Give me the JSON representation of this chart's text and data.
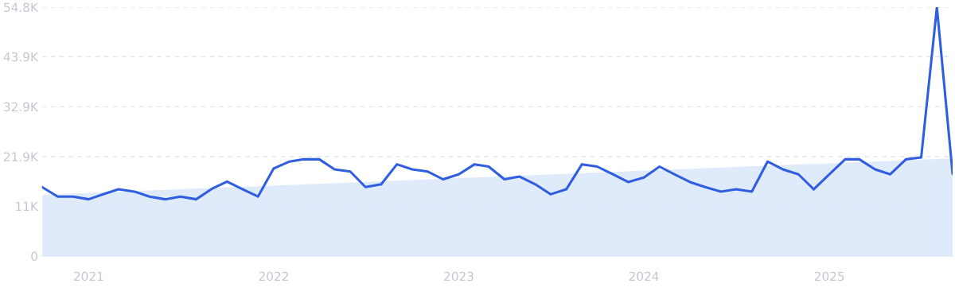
{
  "chart_data": {
    "type": "line",
    "x": [
      "2020-10",
      "2020-11",
      "2020-12",
      "2021-01",
      "2021-02",
      "2021-03",
      "2021-04",
      "2021-05",
      "2021-06",
      "2021-07",
      "2021-08",
      "2021-09",
      "2021-10",
      "2021-11",
      "2021-12",
      "2022-01",
      "2022-02",
      "2022-03",
      "2022-04",
      "2022-05",
      "2022-06",
      "2022-07",
      "2022-08",
      "2022-09",
      "2022-10",
      "2022-11",
      "2022-12",
      "2023-01",
      "2023-02",
      "2023-03",
      "2023-04",
      "2023-05",
      "2023-06",
      "2023-07",
      "2023-08",
      "2023-09",
      "2023-10",
      "2023-11",
      "2023-12",
      "2024-01",
      "2024-02",
      "2024-03",
      "2024-04",
      "2024-05",
      "2024-06",
      "2024-07",
      "2024-08",
      "2024-09",
      "2024-10",
      "2024-11",
      "2024-12",
      "2025-01",
      "2025-02",
      "2025-03",
      "2025-04",
      "2025-05",
      "2025-06",
      "2025-07",
      "2025-08",
      "2025-09"
    ],
    "series": [
      {
        "type": "area",
        "color": "#dce9fb",
        "x": [
          "2020-10",
          "2025-09"
        ],
        "values": [
          13500,
          21500
        ]
      },
      {
        "color": "#2f5fe0",
        "values": [
          15200,
          13100,
          13100,
          12500,
          13700,
          14700,
          14200,
          13100,
          12500,
          13100,
          12500,
          14800,
          16400,
          14700,
          13100,
          19300,
          20800,
          21300,
          21300,
          19100,
          18600,
          15200,
          15800,
          20200,
          19100,
          18600,
          16900,
          18000,
          20200,
          19700,
          16900,
          17500,
          15800,
          13600,
          14700,
          20200,
          19700,
          18000,
          16300,
          17300,
          19700,
          18000,
          16300,
          15200,
          14200,
          14700,
          14200,
          20800,
          19100,
          18000,
          14700,
          18000,
          21300,
          21300,
          19100,
          18000,
          21300,
          21700,
          54800,
          18100
        ]
      }
    ],
    "ylim": [
      0,
      54800
    ],
    "yticks": [
      0,
      {
        "value": 11000,
        "label": "11K"
      },
      {
        "value": 21900,
        "label": "21.9K"
      },
      {
        "value": 32900,
        "label": "32.9K"
      },
      {
        "value": 43900,
        "label": "43.9K"
      },
      {
        "value": 54800,
        "label": "54.8K"
      }
    ],
    "xlim": [
      "2020-10",
      "2025-09"
    ],
    "xticks": [
      {
        "value": "2021-01",
        "label": "2021"
      },
      {
        "value": "2022-01",
        "label": "2022"
      },
      {
        "value": "2023-01",
        "label": "2023"
      },
      {
        "value": "2024-01",
        "label": "2024"
      },
      {
        "value": "2025-01",
        "label": "2025"
      }
    ],
    "grid": "y",
    "legend": false
  }
}
